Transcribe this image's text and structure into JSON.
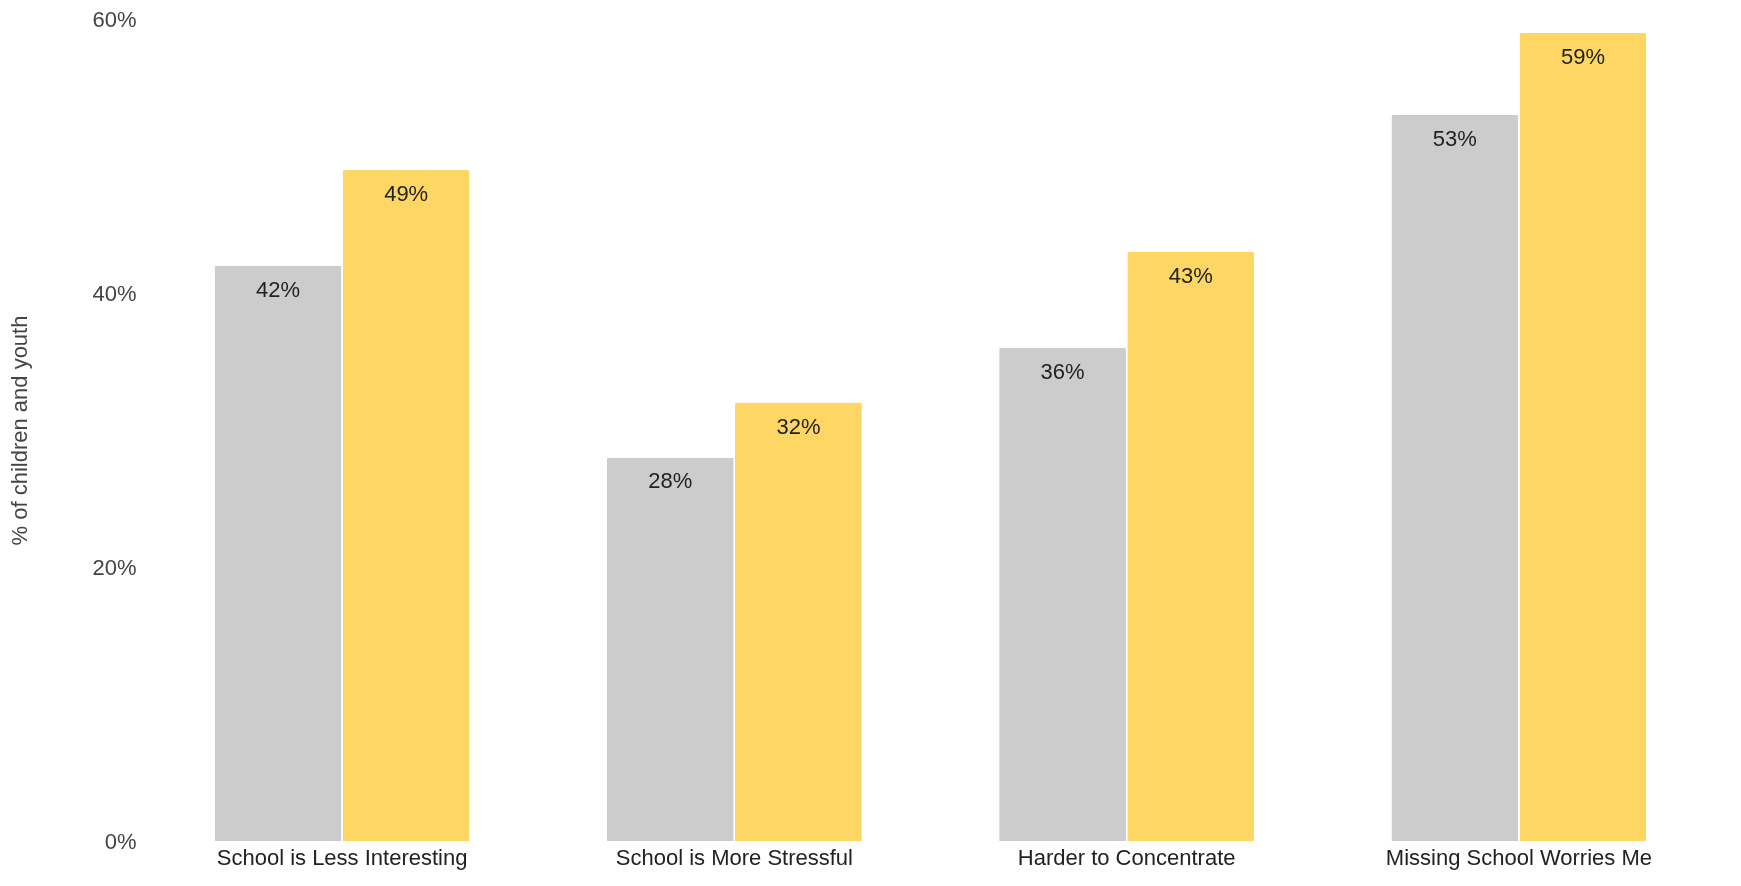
{
  "chart_data": {
    "type": "bar",
    "ylabel": "% of children and youth",
    "categories": [
      "School is Less Interesting",
      "School is More Stressful",
      "Harder to Concentrate",
      "Missing School Worries Me"
    ],
    "series": [
      {
        "color": "#cccccc",
        "values": [
          42,
          28,
          36,
          53
        ],
        "value_labels": [
          "42%",
          "28%",
          "36%",
          "53%"
        ]
      },
      {
        "color": "#fdd663",
        "values": [
          49,
          32,
          43,
          59
        ],
        "value_labels": [
          "49%",
          "32%",
          "43%",
          "59%"
        ]
      }
    ],
    "ylim": [
      0,
      60
    ],
    "yticks": [
      {
        "value": 0,
        "label": "0%"
      },
      {
        "value": 20,
        "label": "20%"
      },
      {
        "value": 40,
        "label": "40%"
      },
      {
        "value": 60,
        "label": "60%"
      }
    ],
    "grid": false,
    "legend": false
  }
}
